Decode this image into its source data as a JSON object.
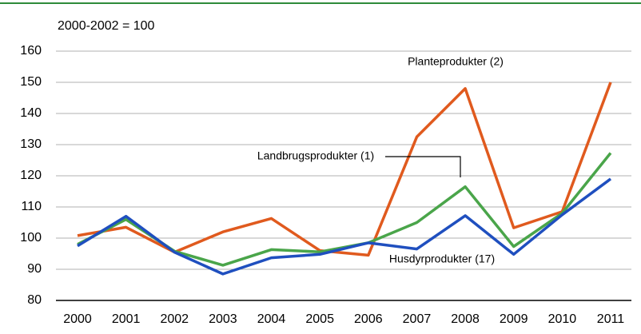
{
  "chart_data": {
    "type": "line",
    "subtitle": "2000-2002 = 100",
    "categories": [
      "2000",
      "2001",
      "2002",
      "2003",
      "2004",
      "2005",
      "2006",
      "2007",
      "2008",
      "2009",
      "2010",
      "2011"
    ],
    "series": [
      {
        "name": "Planteprodukter (2)",
        "color": "#e05a1e",
        "values": [
          100.8,
          103.5,
          95.5,
          102,
          106.3,
          96,
          94.5,
          132.5,
          148,
          103.3,
          108.5,
          150
        ]
      },
      {
        "name": "Landbrugsprodukter (1)",
        "color": "#4aa54a",
        "values": [
          98,
          106,
          95.8,
          91.3,
          96.3,
          95.6,
          98.5,
          105,
          116.5,
          97.3,
          108,
          127.3
        ]
      },
      {
        "name": "Husdyrprodukter (17)",
        "color": "#1f4fbf",
        "values": [
          97.5,
          107,
          95.5,
          88.5,
          93.7,
          94.8,
          98.5,
          96.5,
          107.2,
          94.8,
          107.5,
          119
        ]
      }
    ],
    "ylim": [
      80,
      160
    ],
    "yticks": [
      80,
      90,
      100,
      110,
      120,
      130,
      140,
      150,
      160
    ],
    "grid": true
  }
}
